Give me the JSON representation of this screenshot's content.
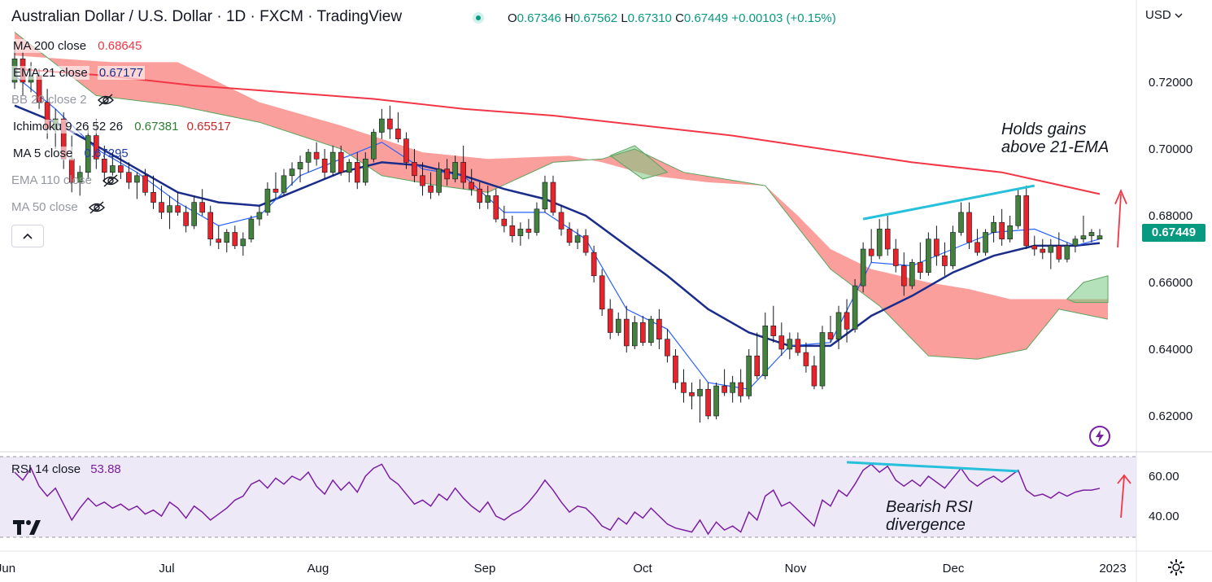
{
  "header": {
    "title": "Australian Dollar / U.S. Dollar · 1D · FXCM · TradingView",
    "ohlc": {
      "open_label": "O",
      "open": "0.67346",
      "high_label": "H",
      "high": "0.67562",
      "low_label": "L",
      "low": "0.67310",
      "close_label": "C",
      "close": "0.67449",
      "change": "+0.00103 (+0.15%)"
    }
  },
  "legend": {
    "ma200": {
      "label": "MA 200 close",
      "value": "0.68645",
      "color": "#f23645"
    },
    "ema21": {
      "label": "EMA 21 close",
      "value": "0.67177",
      "color": "#1a2d8a"
    },
    "bb": {
      "label": "BB 20 close 2"
    },
    "ichimoku": {
      "label": "Ichimoku 9 26 52 26",
      "value1": "0.67381",
      "value2": "0.65517"
    },
    "ma5": {
      "label": "MA 5 close",
      "value": "0.67295",
      "color": "#1e3fa8"
    },
    "ema110": {
      "label": "EMA 110 close"
    },
    "ma50": {
      "label": "MA 50 close"
    }
  },
  "rsi_legend": {
    "label": "RSI 14 close",
    "value": "53.88"
  },
  "price_axis": {
    "currency": "USD",
    "last_price": "0.67449",
    "ticks": [
      "0.72000",
      "0.70000",
      "0.68000",
      "0.66000",
      "0.64000",
      "0.62000"
    ]
  },
  "rsi_axis": {
    "ticks": [
      "60.00",
      "40.00"
    ]
  },
  "time_axis": {
    "labels": [
      "Jun",
      "Jul",
      "Aug",
      "Sep",
      "Oct",
      "Nov",
      "Dec",
      "2023"
    ]
  },
  "annotations": {
    "holds_line1": "Holds gains",
    "holds_line2": "above 21-EMA",
    "rsi_line1": "Bearish RSI",
    "rsi_line2": "divergence"
  },
  "icons": [
    "eye-crossed-icon",
    "chevron-up-icon",
    "flash-icon",
    "tradingview-logo",
    "gear-icon",
    "chevron-down-icon"
  ],
  "colors": {
    "up": "#43813c",
    "down": "#e8232a",
    "ma200": "#f23645",
    "ema21": "#1a2d8a",
    "ma5": "#2962ff",
    "cloud_bear": "#f7736f",
    "cloud_bull": "#a5d6a7",
    "rsi": "#7b1fa2",
    "trendline": "#26c0da",
    "price_tag": "#089981"
  },
  "chart_data": {
    "type": "candlestick",
    "title": "Australian Dollar / U.S. Dollar · 1D · FXCM",
    "ylim": [
      0.612,
      0.735
    ],
    "y_ticks": [
      0.72,
      0.7,
      0.68,
      0.66,
      0.64,
      0.62
    ],
    "x_labels": [
      "Jun",
      "Jul",
      "Aug",
      "Sep",
      "Oct",
      "Nov",
      "Dec",
      "2023"
    ],
    "candles_ohlc": [
      [
        0.72,
        0.73,
        0.718,
        0.727
      ],
      [
        0.727,
        0.729,
        0.716,
        0.72
      ],
      [
        0.72,
        0.726,
        0.717,
        0.722
      ],
      [
        0.722,
        0.724,
        0.712,
        0.714
      ],
      [
        0.714,
        0.718,
        0.703,
        0.706
      ],
      [
        0.706,
        0.712,
        0.7,
        0.709
      ],
      [
        0.709,
        0.711,
        0.694,
        0.697
      ],
      [
        0.697,
        0.704,
        0.687,
        0.69
      ],
      [
        0.69,
        0.695,
        0.686,
        0.693
      ],
      [
        0.693,
        0.707,
        0.691,
        0.704
      ],
      [
        0.704,
        0.709,
        0.694,
        0.697
      ],
      [
        0.697,
        0.701,
        0.69,
        0.693
      ],
      [
        0.693,
        0.699,
        0.692,
        0.695
      ],
      [
        0.695,
        0.698,
        0.691,
        0.693
      ],
      [
        0.693,
        0.696,
        0.688,
        0.69
      ],
      [
        0.69,
        0.693,
        0.685,
        0.692
      ],
      [
        0.692,
        0.694,
        0.686,
        0.687
      ],
      [
        0.687,
        0.692,
        0.682,
        0.684
      ],
      [
        0.684,
        0.689,
        0.679,
        0.681
      ],
      [
        0.681,
        0.686,
        0.676,
        0.683
      ],
      [
        0.683,
        0.687,
        0.68,
        0.681
      ],
      [
        0.681,
        0.683,
        0.675,
        0.677
      ],
      [
        0.677,
        0.686,
        0.676,
        0.684
      ],
      [
        0.684,
        0.688,
        0.68,
        0.681
      ],
      [
        0.681,
        0.683,
        0.671,
        0.673
      ],
      [
        0.673,
        0.677,
        0.67,
        0.672
      ],
      [
        0.672,
        0.676,
        0.669,
        0.675
      ],
      [
        0.675,
        0.677,
        0.67,
        0.671
      ],
      [
        0.671,
        0.675,
        0.668,
        0.673
      ],
      [
        0.673,
        0.68,
        0.672,
        0.679
      ],
      [
        0.679,
        0.683,
        0.677,
        0.681
      ],
      [
        0.681,
        0.69,
        0.68,
        0.688
      ],
      [
        0.688,
        0.693,
        0.685,
        0.687
      ],
      [
        0.687,
        0.694,
        0.686,
        0.692
      ],
      [
        0.692,
        0.696,
        0.689,
        0.694
      ],
      [
        0.694,
        0.698,
        0.69,
        0.696
      ],
      [
        0.696,
        0.7,
        0.693,
        0.699
      ],
      [
        0.699,
        0.702,
        0.695,
        0.697
      ],
      [
        0.697,
        0.7,
        0.691,
        0.693
      ],
      [
        0.693,
        0.701,
        0.692,
        0.699
      ],
      [
        0.699,
        0.701,
        0.692,
        0.693
      ],
      [
        0.693,
        0.697,
        0.69,
        0.696
      ],
      [
        0.696,
        0.699,
        0.688,
        0.69
      ],
      [
        0.69,
        0.699,
        0.689,
        0.697
      ],
      [
        0.697,
        0.706,
        0.696,
        0.705
      ],
      [
        0.705,
        0.712,
        0.703,
        0.709
      ],
      [
        0.709,
        0.713,
        0.703,
        0.706
      ],
      [
        0.706,
        0.711,
        0.702,
        0.703
      ],
      [
        0.703,
        0.705,
        0.694,
        0.696
      ],
      [
        0.696,
        0.7,
        0.69,
        0.692
      ],
      [
        0.692,
        0.696,
        0.686,
        0.689
      ],
      [
        0.689,
        0.693,
        0.685,
        0.687
      ],
      [
        0.687,
        0.696,
        0.686,
        0.694
      ],
      [
        0.694,
        0.697,
        0.689,
        0.691
      ],
      [
        0.691,
        0.698,
        0.69,
        0.696
      ],
      [
        0.696,
        0.701,
        0.688,
        0.69
      ],
      [
        0.69,
        0.694,
        0.686,
        0.688
      ],
      [
        0.688,
        0.69,
        0.682,
        0.684
      ],
      [
        0.684,
        0.689,
        0.682,
        0.686
      ],
      [
        0.686,
        0.688,
        0.678,
        0.679
      ],
      [
        0.679,
        0.683,
        0.675,
        0.677
      ],
      [
        0.677,
        0.68,
        0.672,
        0.674
      ],
      [
        0.674,
        0.678,
        0.671,
        0.676
      ],
      [
        0.676,
        0.679,
        0.673,
        0.675
      ],
      [
        0.675,
        0.684,
        0.674,
        0.682
      ],
      [
        0.682,
        0.692,
        0.681,
        0.69
      ],
      [
        0.69,
        0.692,
        0.68,
        0.681
      ],
      [
        0.681,
        0.683,
        0.674,
        0.676
      ],
      [
        0.676,
        0.678,
        0.671,
        0.672
      ],
      [
        0.672,
        0.676,
        0.67,
        0.674
      ],
      [
        0.674,
        0.676,
        0.668,
        0.669
      ],
      [
        0.669,
        0.671,
        0.66,
        0.662
      ],
      [
        0.662,
        0.664,
        0.65,
        0.652
      ],
      [
        0.652,
        0.655,
        0.643,
        0.645
      ],
      [
        0.645,
        0.651,
        0.644,
        0.649
      ],
      [
        0.649,
        0.653,
        0.639,
        0.641
      ],
      [
        0.641,
        0.65,
        0.64,
        0.648
      ],
      [
        0.648,
        0.65,
        0.641,
        0.642
      ],
      [
        0.642,
        0.65,
        0.641,
        0.649
      ],
      [
        0.649,
        0.652,
        0.64,
        0.643
      ],
      [
        0.643,
        0.646,
        0.636,
        0.638
      ],
      [
        0.638,
        0.64,
        0.628,
        0.63
      ],
      [
        0.63,
        0.634,
        0.624,
        0.627
      ],
      [
        0.627,
        0.63,
        0.622,
        0.626
      ],
      [
        0.626,
        0.631,
        0.618,
        0.628
      ],
      [
        0.628,
        0.63,
        0.619,
        0.62
      ],
      [
        0.62,
        0.63,
        0.619,
        0.629
      ],
      [
        0.629,
        0.634,
        0.626,
        0.627
      ],
      [
        0.627,
        0.632,
        0.624,
        0.63
      ],
      [
        0.63,
        0.634,
        0.624,
        0.626
      ],
      [
        0.626,
        0.64,
        0.625,
        0.638
      ],
      [
        0.638,
        0.645,
        0.631,
        0.632
      ],
      [
        0.632,
        0.651,
        0.631,
        0.647
      ],
      [
        0.647,
        0.653,
        0.642,
        0.644
      ],
      [
        0.644,
        0.648,
        0.638,
        0.64
      ],
      [
        0.64,
        0.645,
        0.637,
        0.643
      ],
      [
        0.643,
        0.645,
        0.638,
        0.639
      ],
      [
        0.639,
        0.642,
        0.633,
        0.635
      ],
      [
        0.635,
        0.638,
        0.628,
        0.629
      ],
      [
        0.629,
        0.647,
        0.628,
        0.645
      ],
      [
        0.645,
        0.65,
        0.642,
        0.643
      ],
      [
        0.643,
        0.653,
        0.64,
        0.651
      ],
      [
        0.651,
        0.655,
        0.642,
        0.646
      ],
      [
        0.646,
        0.661,
        0.645,
        0.659
      ],
      [
        0.659,
        0.672,
        0.657,
        0.67
      ],
      [
        0.67,
        0.676,
        0.666,
        0.668
      ],
      [
        0.668,
        0.679,
        0.667,
        0.676
      ],
      [
        0.676,
        0.68,
        0.668,
        0.67
      ],
      [
        0.67,
        0.673,
        0.663,
        0.665
      ],
      [
        0.665,
        0.669,
        0.656,
        0.659
      ],
      [
        0.659,
        0.667,
        0.658,
        0.666
      ],
      [
        0.666,
        0.672,
        0.661,
        0.663
      ],
      [
        0.663,
        0.675,
        0.662,
        0.673
      ],
      [
        0.673,
        0.677,
        0.665,
        0.668
      ],
      [
        0.668,
        0.672,
        0.662,
        0.665
      ],
      [
        0.665,
        0.677,
        0.664,
        0.675
      ],
      [
        0.675,
        0.684,
        0.674,
        0.681
      ],
      [
        0.681,
        0.684,
        0.67,
        0.672
      ],
      [
        0.672,
        0.676,
        0.668,
        0.669
      ],
      [
        0.669,
        0.676,
        0.668,
        0.675
      ],
      [
        0.675,
        0.68,
        0.672,
        0.678
      ],
      [
        0.678,
        0.682,
        0.671,
        0.673
      ],
      [
        0.673,
        0.68,
        0.672,
        0.677
      ],
      [
        0.677,
        0.688,
        0.676,
        0.686
      ],
      [
        0.686,
        0.689,
        0.67,
        0.671
      ],
      [
        0.671,
        0.674,
        0.668,
        0.67
      ],
      [
        0.67,
        0.673,
        0.667,
        0.669
      ],
      [
        0.669,
        0.673,
        0.664,
        0.671
      ],
      [
        0.671,
        0.675,
        0.666,
        0.667
      ],
      [
        0.667,
        0.672,
        0.666,
        0.671
      ],
      [
        0.671,
        0.674,
        0.669,
        0.673
      ],
      [
        0.673,
        0.68,
        0.672,
        0.674
      ],
      [
        0.674,
        0.676,
        0.672,
        0.675
      ],
      [
        0.673,
        0.676,
        0.673,
        0.674
      ]
    ],
    "series": [
      {
        "name": "MA 200 close",
        "values": [
          [
            0,
            0.724
          ],
          [
            11,
            0.722
          ],
          [
            22,
            0.719
          ],
          [
            33,
            0.717
          ],
          [
            44,
            0.715
          ],
          [
            55,
            0.712
          ],
          [
            66,
            0.71
          ],
          [
            77,
            0.707
          ],
          [
            88,
            0.704
          ],
          [
            99,
            0.7
          ],
          [
            110,
            0.696
          ],
          [
            121,
            0.693
          ],
          [
            133,
            0.6865
          ]
        ]
      },
      {
        "name": "EMA 21 close",
        "values": [
          [
            0,
            0.713
          ],
          [
            5,
            0.708
          ],
          [
            10,
            0.701
          ],
          [
            15,
            0.694
          ],
          [
            20,
            0.687
          ],
          [
            25,
            0.684
          ],
          [
            30,
            0.683
          ],
          [
            35,
            0.688
          ],
          [
            40,
            0.693
          ],
          [
            45,
            0.696
          ],
          [
            50,
            0.695
          ],
          [
            55,
            0.692
          ],
          [
            60,
            0.688
          ],
          [
            65,
            0.685
          ],
          [
            70,
            0.68
          ],
          [
            75,
            0.671
          ],
          [
            80,
            0.662
          ],
          [
            85,
            0.652
          ],
          [
            90,
            0.645
          ],
          [
            95,
            0.641
          ],
          [
            100,
            0.641
          ],
          [
            105,
            0.65
          ],
          [
            110,
            0.656
          ],
          [
            115,
            0.663
          ],
          [
            120,
            0.668
          ],
          [
            125,
            0.671
          ],
          [
            130,
            0.671
          ],
          [
            133,
            0.6718
          ]
        ]
      },
      {
        "name": "MA 5 close",
        "values": [
          [
            0,
            0.722
          ],
          [
            5,
            0.712
          ],
          [
            10,
            0.7
          ],
          [
            15,
            0.693
          ],
          [
            20,
            0.684
          ],
          [
            25,
            0.677
          ],
          [
            30,
            0.68
          ],
          [
            35,
            0.692
          ],
          [
            40,
            0.697
          ],
          [
            45,
            0.702
          ],
          [
            50,
            0.694
          ],
          [
            55,
            0.692
          ],
          [
            60,
            0.681
          ],
          [
            65,
            0.681
          ],
          [
            70,
            0.673
          ],
          [
            75,
            0.652
          ],
          [
            80,
            0.646
          ],
          [
            85,
            0.63
          ],
          [
            90,
            0.628
          ],
          [
            95,
            0.641
          ],
          [
            100,
            0.642
          ],
          [
            105,
            0.666
          ],
          [
            110,
            0.665
          ],
          [
            115,
            0.67
          ],
          [
            120,
            0.675
          ],
          [
            125,
            0.676
          ],
          [
            130,
            0.671
          ],
          [
            133,
            0.673
          ]
        ]
      }
    ],
    "rsi": {
      "name": "RSI 14 close",
      "ylim": [
        30,
        70
      ],
      "bands": [
        70,
        30
      ],
      "values": [
        62,
        58,
        64,
        55,
        50,
        54,
        46,
        38,
        44,
        49,
        45,
        47,
        44,
        46,
        43,
        45,
        41,
        43,
        40,
        47,
        44,
        39,
        45,
        42,
        38,
        41,
        44,
        48,
        50,
        56,
        58,
        54,
        59,
        56,
        60,
        58,
        62,
        55,
        51,
        58,
        53,
        57,
        52,
        60,
        64,
        66,
        59,
        56,
        51,
        46,
        48,
        45,
        51,
        48,
        54,
        49,
        45,
        42,
        47,
        40,
        38,
        41,
        43,
        47,
        52,
        58,
        53,
        47,
        42,
        45,
        44,
        40,
        35,
        33,
        39,
        36,
        42,
        39,
        44,
        40,
        36,
        34,
        33,
        32,
        38,
        31,
        37,
        33,
        35,
        32,
        42,
        38,
        50,
        53,
        45,
        47,
        43,
        39,
        35,
        48,
        45,
        53,
        50,
        56,
        63,
        66,
        62,
        65,
        58,
        55,
        58,
        55,
        60,
        57,
        54,
        59,
        64,
        58,
        55,
        58,
        60,
        57,
        60,
        63,
        53,
        50,
        51,
        49,
        52,
        50,
        52,
        53,
        53,
        53.9
      ]
    },
    "annotations": [
      "Holds gains above 21-EMA",
      "Bearish RSI divergence"
    ]
  }
}
